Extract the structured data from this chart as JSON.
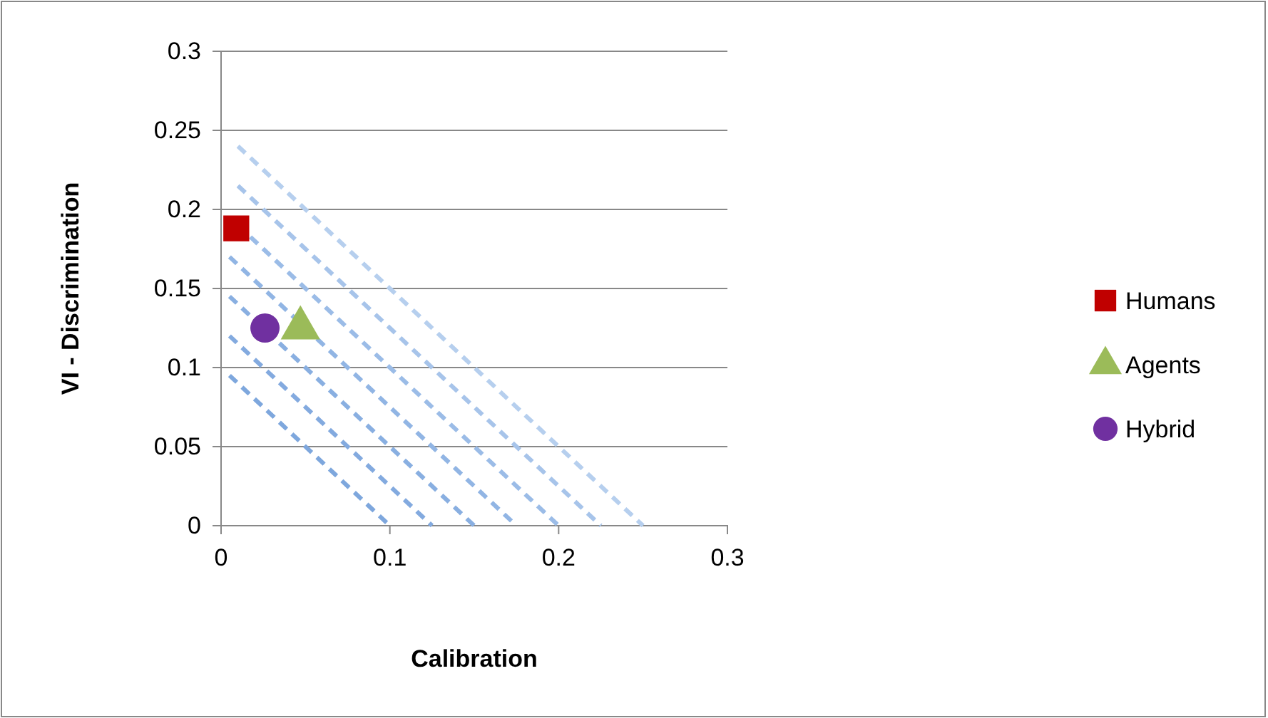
{
  "chart_data": {
    "type": "scatter",
    "xlabel": "Calibration",
    "ylabel": "VI - Discrimination",
    "xlim": [
      0,
      0.3
    ],
    "ylim": [
      0,
      0.3
    ],
    "xticks": [
      0,
      0.1,
      0.2,
      0.3
    ],
    "yticks": [
      0,
      0.05,
      0.1,
      0.15,
      0.2,
      0.25,
      0.3
    ],
    "grid": "y",
    "legend": "right",
    "series": [
      {
        "type": "line",
        "line_style": "dashed",
        "color": "#7ea7dd",
        "x": [
          0.005,
          0.1
        ],
        "values": [
          0.095,
          0
        ]
      },
      {
        "type": "line",
        "line_style": "dashed",
        "color": "#83aadf",
        "x": [
          0.005,
          0.125
        ],
        "values": [
          0.12,
          0
        ]
      },
      {
        "type": "line",
        "line_style": "dashed",
        "color": "#89afe1",
        "x": [
          0.005,
          0.15
        ],
        "values": [
          0.145,
          0
        ]
      },
      {
        "type": "line",
        "line_style": "dashed",
        "color": "#91b5e4",
        "x": [
          0.005,
          0.175
        ],
        "values": [
          0.17,
          0
        ]
      },
      {
        "type": "line",
        "line_style": "dashed",
        "color": "#9bbce7",
        "x": [
          0.01,
          0.2
        ],
        "values": [
          0.19,
          0
        ]
      },
      {
        "type": "line",
        "line_style": "dashed",
        "color": "#a7c4ea",
        "x": [
          0.01,
          0.225
        ],
        "values": [
          0.215,
          0
        ]
      },
      {
        "type": "line",
        "line_style": "dashed",
        "color": "#b6cfee",
        "x": [
          0.01,
          0.25
        ],
        "values": [
          0.24,
          0
        ]
      },
      {
        "name": "Humans",
        "marker": "square",
        "color": "#c00000",
        "x": [
          0.009
        ],
        "values": [
          0.188
        ]
      },
      {
        "name": "Agents",
        "marker": "triangle",
        "color": "#9bbb59",
        "x": [
          0.047
        ],
        "values": [
          0.125
        ]
      },
      {
        "name": "Hybrid",
        "marker": "circle",
        "color": "#7030a0",
        "x": [
          0.026
        ],
        "values": [
          0.125
        ]
      }
    ]
  }
}
